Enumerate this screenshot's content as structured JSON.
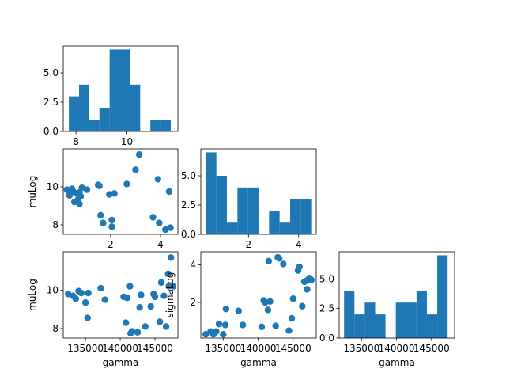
{
  "chart_data": {
    "type": "pair-grid",
    "variables": [
      "gamma",
      "muLog",
      "sigmaLog"
    ],
    "style": {
      "color": "#1f77b4",
      "background": "#ffffff",
      "axes_color": "#000000"
    },
    "panels": [
      {
        "id": "hist-mulog",
        "type": "bar",
        "variable": "muLog",
        "xlim": [
          7.5,
          12.0
        ],
        "ylim": [
          0,
          7.3
        ],
        "xticks": [
          8,
          10
        ],
        "xtick_labels": [
          "8",
          "10"
        ],
        "yticks": [
          0.0,
          2.5,
          5.0
        ],
        "ytick_labels": [
          "0.0",
          "2.5",
          "5.0"
        ],
        "xlabel": "",
        "ylabel": "",
        "bins": [
          {
            "x0": 7.72,
            "x1": 8.12,
            "value": 3
          },
          {
            "x0": 8.12,
            "x1": 8.52,
            "value": 4
          },
          {
            "x0": 8.52,
            "x1": 8.92,
            "value": 1
          },
          {
            "x0": 8.92,
            "x1": 9.32,
            "value": 2
          },
          {
            "x0": 9.32,
            "x1": 9.72,
            "value": 7
          },
          {
            "x0": 9.72,
            "x1": 10.12,
            "value": 7
          },
          {
            "x0": 10.12,
            "x1": 10.52,
            "value": 4
          },
          {
            "x0": 10.52,
            "x1": 10.92,
            "value": 0
          },
          {
            "x0": 10.92,
            "x1": 11.32,
            "value": 1
          },
          {
            "x0": 11.32,
            "x1": 11.72,
            "value": 1
          }
        ]
      },
      {
        "id": "scatter-sigmalog-mulog",
        "type": "scatter",
        "x_variable": "sigmaLog",
        "y_variable": "muLog",
        "xlim": [
          0.1,
          4.7
        ],
        "ylim": [
          7.5,
          12.0
        ],
        "xticks": [
          2,
          4
        ],
        "xtick_labels": [
          "2",
          "4"
        ],
        "yticks": [
          8,
          10
        ],
        "ytick_labels": [
          "8",
          "10"
        ],
        "xlabel": "",
        "ylabel": "muLog",
        "points": [
          [
            0.25,
            9.85
          ],
          [
            0.3,
            9.8
          ],
          [
            0.35,
            9.55
          ],
          [
            0.4,
            9.8
          ],
          [
            0.45,
            9.9
          ],
          [
            0.5,
            9.75
          ],
          [
            0.55,
            9.2
          ],
          [
            0.65,
            9.65
          ],
          [
            0.7,
            9.35
          ],
          [
            0.75,
            9.1
          ],
          [
            0.75,
            9.7
          ],
          [
            0.8,
            9.5
          ],
          [
            0.85,
            9.95
          ],
          [
            1.05,
            9.85
          ],
          [
            1.5,
            10.1
          ],
          [
            1.55,
            10.05
          ],
          [
            1.6,
            8.5
          ],
          [
            1.7,
            8.1
          ],
          [
            1.95,
            9.6
          ],
          [
            2.05,
            7.9
          ],
          [
            2.05,
            8.25
          ],
          [
            2.15,
            9.65
          ],
          [
            2.65,
            10.15
          ],
          [
            3.0,
            10.9
          ],
          [
            3.15,
            11.7
          ],
          [
            3.7,
            8.4
          ],
          [
            3.9,
            10.4
          ],
          [
            3.95,
            8.1
          ],
          [
            4.2,
            7.75
          ],
          [
            4.35,
            9.75
          ],
          [
            4.4,
            7.85
          ]
        ]
      },
      {
        "id": "hist-sigmalog",
        "type": "bar",
        "variable": "sigmaLog",
        "xlim": [
          0.1,
          4.7
        ],
        "ylim": [
          0,
          7.3
        ],
        "xticks": [
          2,
          4
        ],
        "xtick_labels": [
          "2",
          "4"
        ],
        "yticks": [
          0.0,
          2.5,
          5.0
        ],
        "ytick_labels": [
          "0.0",
          "2.5",
          "5.0"
        ],
        "xlabel": "",
        "ylabel": "",
        "bins": [
          {
            "x0": 0.3,
            "x1": 0.72,
            "value": 7
          },
          {
            "x0": 0.72,
            "x1": 1.14,
            "value": 5
          },
          {
            "x0": 1.14,
            "x1": 1.56,
            "value": 1
          },
          {
            "x0": 1.56,
            "x1": 1.98,
            "value": 4
          },
          {
            "x0": 1.98,
            "x1": 2.4,
            "value": 4
          },
          {
            "x0": 2.4,
            "x1": 2.82,
            "value": 0
          },
          {
            "x0": 2.82,
            "x1": 3.24,
            "value": 2
          },
          {
            "x0": 3.24,
            "x1": 3.66,
            "value": 1
          },
          {
            "x0": 3.66,
            "x1": 4.08,
            "value": 3
          },
          {
            "x0": 4.08,
            "x1": 4.5,
            "value": 3
          }
        ]
      },
      {
        "id": "scatter-gamma-mulog",
        "type": "scatter",
        "x_variable": "gamma",
        "y_variable": "muLog",
        "xlim": [
          131800,
          148300
        ],
        "ylim": [
          7.5,
          12.0
        ],
        "xticks": [
          135000,
          140000,
          145000
        ],
        "xtick_labels": [
          "135000",
          "140000",
          "145000"
        ],
        "yticks": [
          8,
          10
        ],
        "ytick_labels": [
          "8",
          "10"
        ],
        "xlabel": "gamma",
        "ylabel": "muLog",
        "points": [
          [
            132500,
            9.8
          ],
          [
            133200,
            9.7
          ],
          [
            133600,
            9.55
          ],
          [
            134000,
            9.95
          ],
          [
            134400,
            9.85
          ],
          [
            135000,
            9.35
          ],
          [
            135300,
            8.55
          ],
          [
            135400,
            9.85
          ],
          [
            137200,
            10.1
          ],
          [
            137800,
            9.5
          ],
          [
            140500,
            9.65
          ],
          [
            140800,
            8.3
          ],
          [
            141000,
            9.6
          ],
          [
            141400,
            10.2
          ],
          [
            141500,
            7.75
          ],
          [
            141700,
            7.85
          ],
          [
            142500,
            7.8
          ],
          [
            142800,
            9.1
          ],
          [
            143000,
            9.75
          ],
          [
            143600,
            8.1
          ],
          [
            144400,
            9.15
          ],
          [
            144800,
            9.8
          ],
          [
            145000,
            9.65
          ],
          [
            145700,
            8.35
          ],
          [
            145900,
            10.4
          ],
          [
            146300,
            9.7
          ],
          [
            146600,
            8.1
          ],
          [
            146900,
            10.85
          ],
          [
            147000,
            10.2
          ],
          [
            147300,
            11.7
          ],
          [
            147600,
            10.2
          ]
        ]
      },
      {
        "id": "scatter-gamma-sigmalog",
        "type": "scatter",
        "x_variable": "gamma",
        "y_variable": "sigmaLog",
        "xlim": [
          131800,
          148300
        ],
        "ylim": [
          0.1,
          4.7
        ],
        "xticks": [
          135000,
          140000,
          145000
        ],
        "xtick_labels": [
          "135000",
          "140000",
          "145000"
        ],
        "yticks": [
          2,
          4
        ],
        "ytick_labels": [
          "2",
          "4"
        ],
        "xlabel": "gamma",
        "ylabel": "sigmaLog",
        "points": [
          [
            132500,
            0.3
          ],
          [
            133200,
            0.45
          ],
          [
            133600,
            0.3
          ],
          [
            134000,
            0.45
          ],
          [
            134400,
            0.85
          ],
          [
            135000,
            0.3
          ],
          [
            135300,
            0.8
          ],
          [
            135400,
            1.65
          ],
          [
            137200,
            1.55
          ],
          [
            137800,
            0.8
          ],
          [
            140500,
            0.7
          ],
          [
            140800,
            2.1
          ],
          [
            141000,
            2.0
          ],
          [
            141400,
            1.6
          ],
          [
            141500,
            4.2
          ],
          [
            141700,
            2.05
          ],
          [
            142500,
            0.75
          ],
          [
            142800,
            4.4
          ],
          [
            143000,
            4.35
          ],
          [
            143600,
            4.05
          ],
          [
            144400,
            0.5
          ],
          [
            144800,
            1.15
          ],
          [
            145000,
            2.2
          ],
          [
            145700,
            3.7
          ],
          [
            145900,
            3.9
          ],
          [
            146300,
            1.8
          ],
          [
            146600,
            3.1
          ],
          [
            146900,
            3.15
          ],
          [
            147000,
            2.7
          ],
          [
            147300,
            3.3
          ],
          [
            147600,
            3.2
          ]
        ]
      },
      {
        "id": "hist-gamma",
        "type": "bar",
        "variable": "gamma",
        "xlim": [
          131800,
          148300
        ],
        "ylim": [
          0,
          7.3
        ],
        "xticks": [
          135000,
          140000,
          145000
        ],
        "xtick_labels": [
          "135000",
          "140000",
          "145000"
        ],
        "yticks": [
          0.0,
          2.5,
          5.0
        ],
        "ytick_labels": [
          "0.0",
          "2.5",
          "5.0"
        ],
        "xlabel": "gamma",
        "ylabel": "",
        "bins": [
          {
            "x0": 132500,
            "x1": 133980,
            "value": 4
          },
          {
            "x0": 133980,
            "x1": 135460,
            "value": 2
          },
          {
            "x0": 135460,
            "x1": 136940,
            "value": 3
          },
          {
            "x0": 136940,
            "x1": 138420,
            "value": 2
          },
          {
            "x0": 138420,
            "x1": 139900,
            "value": 0
          },
          {
            "x0": 139900,
            "x1": 141380,
            "value": 3
          },
          {
            "x0": 141380,
            "x1": 142860,
            "value": 3
          },
          {
            "x0": 142860,
            "x1": 144340,
            "value": 4
          },
          {
            "x0": 144340,
            "x1": 145820,
            "value": 2
          },
          {
            "x0": 145820,
            "x1": 147300,
            "value": 7
          }
        ]
      }
    ]
  }
}
